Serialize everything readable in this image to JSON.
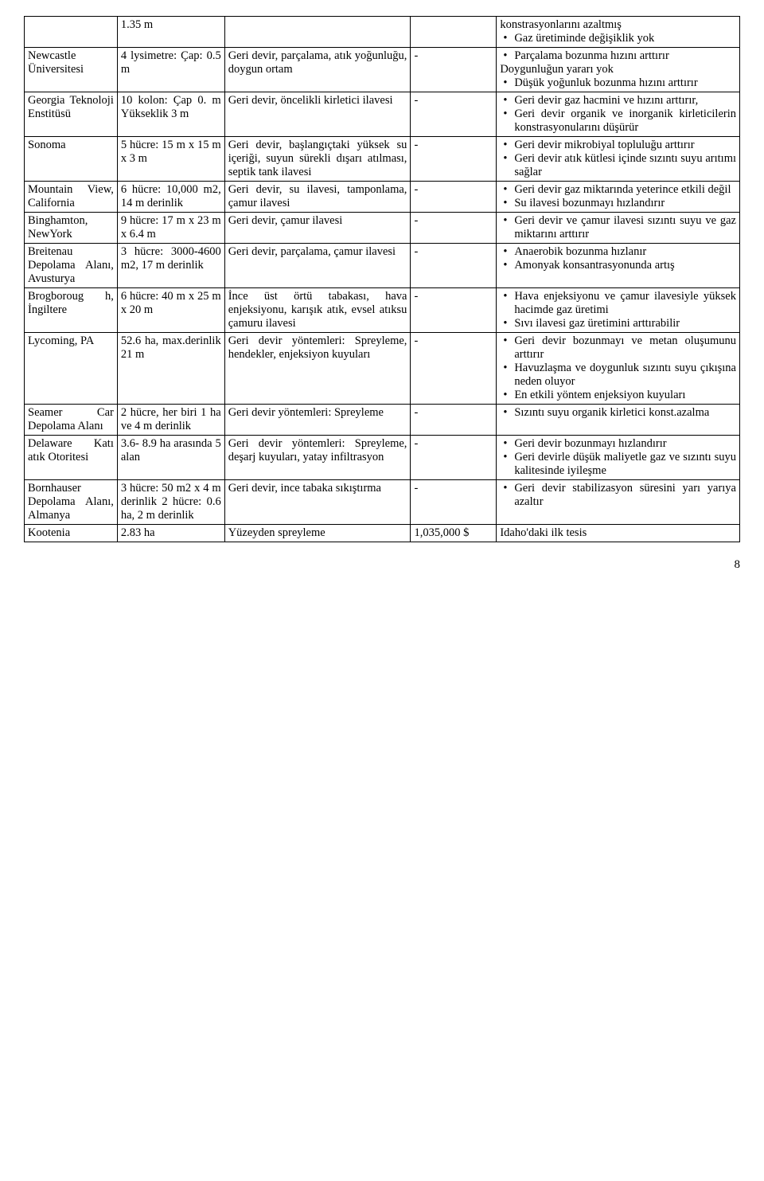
{
  "page_number": "8",
  "rows": [
    {
      "c1": "",
      "c2": "1.35 m",
      "c3": "",
      "c4": "",
      "c5_items": [
        "konstrasyonlarını azaltmış",
        "Gaz üretiminde değişiklik yok"
      ],
      "c5_prefix_plain": true
    },
    {
      "c1": "Newcastle Üniversitesi",
      "c2": "4 lysimetre: Çap: 0.5 m",
      "c3": "Geri devir, parçalama, atık yoğunluğu, doygun ortam",
      "c4": "-",
      "c5_items": [
        "Parçalama bozunma hızını arttırır",
        "Doygunluğun yararı yok",
        "Düşük yoğunluk bozunma hızını arttırır"
      ],
      "c5_plain_after_first": "Doygunluğun yararı yok"
    },
    {
      "c1": "Georgia Teknoloji Enstitüsü",
      "c2": "10 kolon: Çap 0. m Yükseklik 3 m",
      "c3": "Geri devir, öncelikli kirletici ilavesi",
      "c4": "-",
      "c5_items": [
        "Geri devir gaz hacmini ve hızını arttırır,",
        "Geri devir organik ve inorganik kirleticilerin konstrasyonularını düşürür"
      ]
    },
    {
      "c1": "Sonoma",
      "c2": "5 hücre: 15 m x 15 m x 3 m",
      "c3": "Geri devir, başlangıçtaki yüksek su içeriği, suyun sürekli dışarı atılması, septik tank ilavesi",
      "c4": "-",
      "c5_items": [
        "Geri devir mikrobiyal topluluğu arttırır",
        "Geri devir atık kütlesi içinde sızıntı suyu arıtımı sağlar"
      ]
    },
    {
      "c1": "Mountain View, California",
      "c2": "6 hücre: 10,000 m2, 14 m derinlik",
      "c3": "Geri devir, su ilavesi, tamponlama, çamur ilavesi",
      "c4": "-",
      "c5_items": [
        "Geri devir gaz miktarında yeterince etkili değil",
        "Su ilavesi bozunmayı hızlandırır"
      ]
    },
    {
      "c1": "Binghamton, NewYork",
      "c2": "9 hücre: 17 m x 23 m x 6.4 m",
      "c3": "Geri devir, çamur ilavesi",
      "c4": "-",
      "c5_items": [
        "Geri devir ve çamur ilavesi sızıntı suyu ve gaz miktarını arttırır"
      ]
    },
    {
      "c1": "Breitenau Depolama Alanı, Avusturya",
      "c2": "3 hücre: 3000-4600 m2, 17 m derinlik",
      "c3": "Geri devir, parçalama, çamur ilavesi",
      "c4": "-",
      "c5_items": [
        "Anaerobik bozunma hızlanır",
        "Amonyak konsantrasyonunda artış"
      ]
    },
    {
      "c1": "Brogboroug h, İngiltere",
      "c2": "6 hücre: 40 m x 25 m x 20 m",
      "c3": "İnce üst örtü tabakası, hava enjeksiyonu, karışık atık, evsel atıksu çamuru ilavesi",
      "c4": "-",
      "c5_items": [
        "Hava enjeksiyonu ve çamur ilavesiyle yüksek hacimde gaz üretimi",
        "Sıvı ilavesi gaz üretimini arttırabilir"
      ]
    },
    {
      "c1": "Lycoming, PA",
      "c2": "52.6 ha, max.derinlik 21 m",
      "c3": "Geri devir yöntemleri: Spreyleme, hendekler, enjeksiyon kuyuları",
      "c4": "-",
      "c5_items": [
        "Geri devir bozunmayı ve metan oluşumunu arttırır",
        "Havuzlaşma ve doygunluk sızıntı suyu çıkışına neden oluyor",
        "En etkili yöntem enjeksiyon kuyuları"
      ]
    },
    {
      "c1": "Seamer Car Depolama Alanı",
      "c2": "2 hücre, her biri 1 ha ve 4 m derinlik",
      "c3": "Geri devir yöntemleri: Spreyleme",
      "c4": "-",
      "c5_items": [
        "Sızıntı suyu organik kirletici konst.azalma"
      ]
    },
    {
      "c1": "Delaware Katı atık Otoritesi",
      "c2": "3.6- 8.9 ha arasında 5 alan",
      "c3": "Geri devir yöntemleri: Spreyleme, deşarj kuyuları, yatay infiltrasyon",
      "c4": "-",
      "c5_items": [
        "Geri devir bozunmayı hızlandırır",
        "Geri devirle düşük maliyetle gaz ve sızıntı suyu kalitesinde iyileşme"
      ]
    },
    {
      "c1": "Bornhauser Depolama Alanı, Almanya",
      "c2": "3 hücre: 50 m2 x 4 m derinlik 2 hücre: 0.6 ha, 2 m derinlik",
      "c3": "Geri devir, ince tabaka sıkıştırma",
      "c4": "-",
      "c5_items": [
        "Geri devir stabilizasyon süresini yarı yarıya azaltır"
      ]
    },
    {
      "c1": "Kootenia",
      "c2": "2.83 ha",
      "c3": "Yüzeyden spreyleme",
      "c4": "1,035,000 $",
      "c5_plain": "Idaho'daki ilk tesis"
    }
  ]
}
